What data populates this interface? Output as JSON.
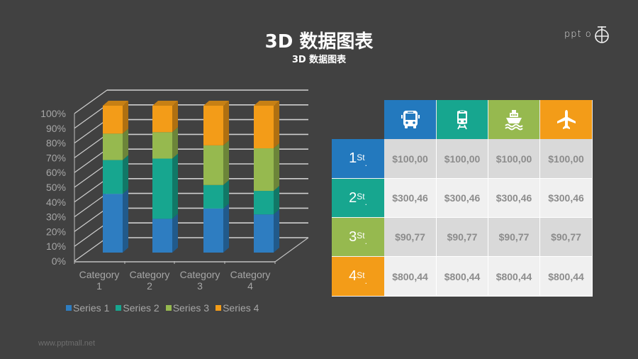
{
  "header": {
    "title": "3D 数据图表",
    "subtitle": "3D 数据图表",
    "logo_text": "PPT"
  },
  "chart_data": {
    "type": "bar",
    "subtype": "3d-stacked-100-percent",
    "title": "",
    "xlabel": "",
    "ylabel": "",
    "categories": [
      "Category 1",
      "Category 2",
      "Category 3",
      "Category 4"
    ],
    "category_lines": [
      [
        "Category",
        "1"
      ],
      [
        "Category",
        "2"
      ],
      [
        "Category",
        "3"
      ],
      [
        "Category",
        "4"
      ]
    ],
    "series": [
      {
        "name": "Series 1",
        "color": "#2e7dc1",
        "values": [
          40,
          23,
          30,
          26
        ]
      },
      {
        "name": "Series 2",
        "color": "#17a68f",
        "values": [
          23,
          41,
          16,
          16
        ]
      },
      {
        "name": "Series 3",
        "color": "#96b94f",
        "values": [
          18,
          18,
          27,
          29
        ]
      },
      {
        "name": "Series 4",
        "color": "#f39c18",
        "values": [
          19,
          18,
          27,
          29
        ]
      }
    ],
    "yticks": [
      "0%",
      "10%",
      "20%",
      "30%",
      "40%",
      "50%",
      "60%",
      "70%",
      "80%",
      "90%",
      "100%"
    ],
    "ylim": [
      0,
      100
    ],
    "grid": true,
    "legend_position": "bottom"
  },
  "legend": [
    {
      "label": "Series 1",
      "color": "#2e7dc1"
    },
    {
      "label": "Series 2",
      "color": "#17a68f"
    },
    {
      "label": "Series 3",
      "color": "#96b94f"
    },
    {
      "label": "Series 4",
      "color": "#f39c18"
    }
  ],
  "table": {
    "columns": [
      {
        "icon": "bus-icon",
        "color": "#2379be"
      },
      {
        "icon": "train-icon",
        "color": "#17a68f"
      },
      {
        "icon": "ship-icon",
        "color": "#96b94f"
      },
      {
        "icon": "plane-icon",
        "color": "#f39c18"
      }
    ],
    "rows": [
      {
        "rank": "1",
        "suffix": "St",
        "dot": ".",
        "color": "#2379be",
        "bg": "#d9d9d9",
        "values": [
          "$100,00",
          "$100,00",
          "$100,00",
          "$100,00"
        ]
      },
      {
        "rank": "2",
        "suffix": "St",
        "dot": ".",
        "color": "#17a68f",
        "bg": "#f0f0f0",
        "values": [
          "$300,46",
          "$300,46",
          "$300,46",
          "$300,46"
        ]
      },
      {
        "rank": "3",
        "suffix": "St",
        "dot": ".",
        "color": "#96b94f",
        "bg": "#d9d9d9",
        "values": [
          "$90,77",
          "$90,77",
          "$90,77",
          "$90,77"
        ]
      },
      {
        "rank": "4",
        "suffix": "St",
        "dot": ".",
        "color": "#f39c18",
        "bg": "#f0f0f0",
        "values": [
          "$800,44",
          "$800,44",
          "$800,44",
          "$800,44"
        ]
      }
    ]
  },
  "footer": {
    "url": "www.pptmall.net"
  }
}
